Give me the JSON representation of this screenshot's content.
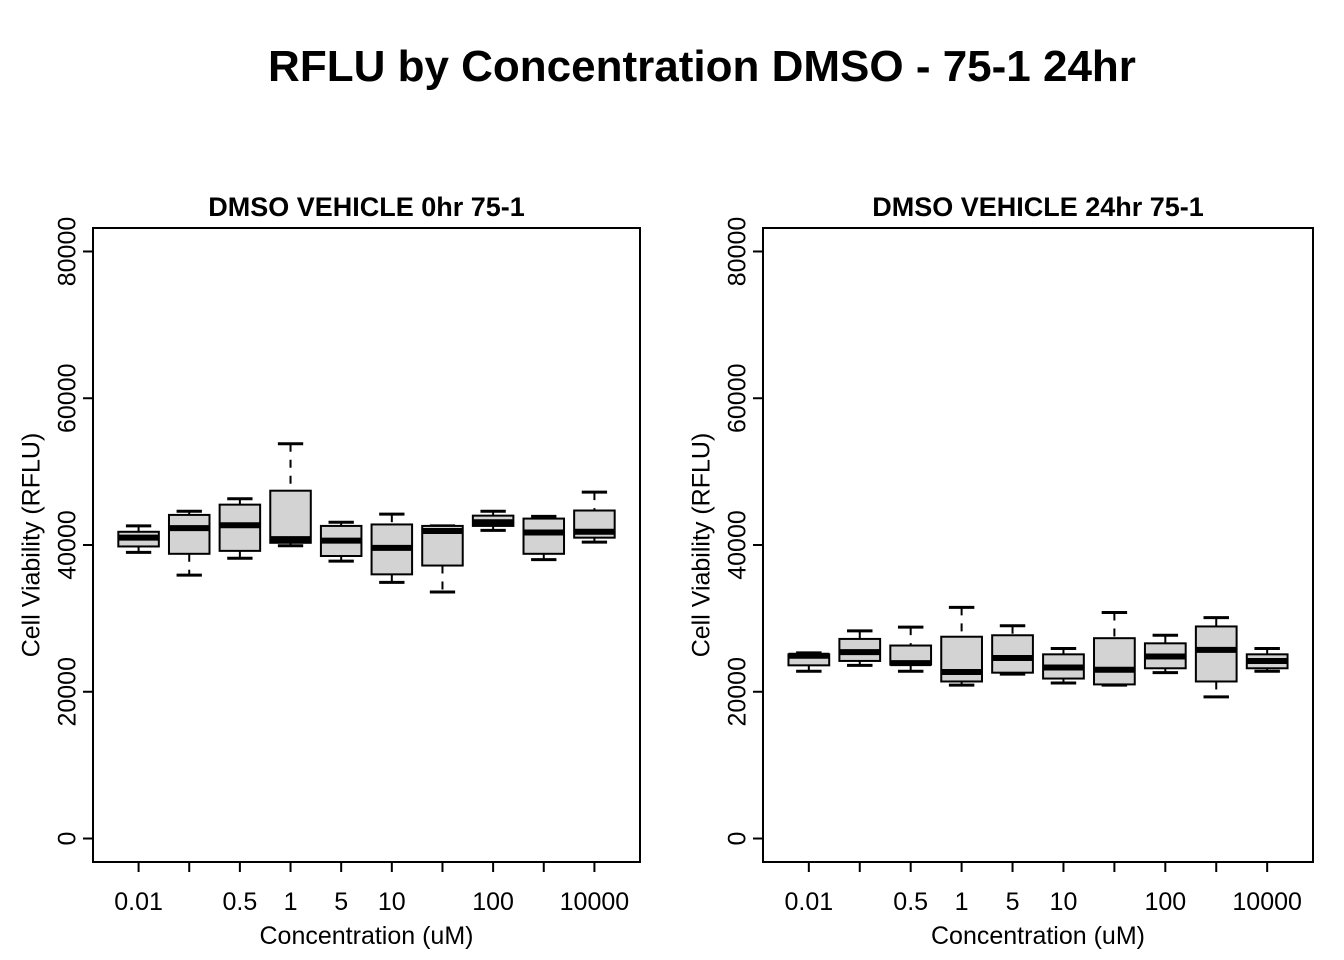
{
  "figure_title": "RFLU by Concentration DMSO - 75-1 24hr",
  "chart_data": [
    {
      "type": "boxplot",
      "title": "DMSO VEHICLE 0hr 75-1",
      "xlabel": "Concentration (uM)",
      "ylabel": "Cell Viability (RFLU)",
      "ylim": [
        0,
        80000
      ],
      "yticks": [
        "0",
        "20000",
        "40000",
        "60000",
        "80000"
      ],
      "ytick_values": [
        0,
        20000,
        40000,
        60000,
        80000
      ],
      "xtick_labels": [
        "0.01",
        "",
        "0.5",
        "1",
        "5",
        "10",
        "",
        "100",
        "",
        "10000"
      ],
      "grid": false,
      "legend": null,
      "box_fill": "#d3d3d3",
      "line_color": "#000000",
      "boxes": [
        {
          "low": 39000,
          "q1": 39800,
          "median": 41000,
          "q3": 41800,
          "high": 42600
        },
        {
          "low": 35900,
          "q1": 38800,
          "median": 42300,
          "q3": 44100,
          "high": 44600
        },
        {
          "low": 38200,
          "q1": 39200,
          "median": 42700,
          "q3": 45500,
          "high": 46300
        },
        {
          "low": 39900,
          "q1": 40300,
          "median": 40800,
          "q3": 47400,
          "high": 53800
        },
        {
          "low": 37800,
          "q1": 38500,
          "median": 40600,
          "q3": 42600,
          "high": 43100
        },
        {
          "low": 34900,
          "q1": 36000,
          "median": 39600,
          "q3": 42800,
          "high": 44200
        },
        {
          "low": 33600,
          "q1": 37200,
          "median": 41900,
          "q3": 42600,
          "high": 42600
        },
        {
          "low": 42000,
          "q1": 42600,
          "median": 43100,
          "q3": 44000,
          "high": 44600
        },
        {
          "low": 38000,
          "q1": 38800,
          "median": 41700,
          "q3": 43600,
          "high": 43900
        },
        {
          "low": 40400,
          "q1": 41000,
          "median": 41800,
          "q3": 44700,
          "high": 47200
        }
      ]
    },
    {
      "type": "boxplot",
      "title": "DMSO VEHICLE 24hr 75-1",
      "xlabel": "Concentration (uM)",
      "ylabel": "Cell Viability (RFLU)",
      "ylim": [
        0,
        80000
      ],
      "yticks": [
        "0",
        "20000",
        "40000",
        "60000",
        "80000"
      ],
      "ytick_values": [
        0,
        20000,
        40000,
        60000,
        80000
      ],
      "xtick_labels": [
        "0.01",
        "",
        "0.5",
        "1",
        "5",
        "10",
        "",
        "100",
        "",
        "10000"
      ],
      "grid": false,
      "legend": null,
      "box_fill": "#d3d3d3",
      "line_color": "#000000",
      "boxes": [
        {
          "low": 22800,
          "q1": 23600,
          "median": 24900,
          "q3": 25100,
          "high": 25300
        },
        {
          "low": 23600,
          "q1": 24200,
          "median": 25400,
          "q3": 27200,
          "high": 28300
        },
        {
          "low": 22800,
          "q1": 23700,
          "median": 23900,
          "q3": 26300,
          "high": 28800
        },
        {
          "low": 20900,
          "q1": 21400,
          "median": 22700,
          "q3": 27500,
          "high": 31500
        },
        {
          "low": 22400,
          "q1": 22600,
          "median": 24600,
          "q3": 27700,
          "high": 29000
        },
        {
          "low": 21200,
          "q1": 21800,
          "median": 23300,
          "q3": 25100,
          "high": 25900
        },
        {
          "low": 20900,
          "q1": 21000,
          "median": 23000,
          "q3": 27300,
          "high": 30800
        },
        {
          "low": 22600,
          "q1": 23200,
          "median": 24800,
          "q3": 26600,
          "high": 27700
        },
        {
          "low": 19300,
          "q1": 21400,
          "median": 25700,
          "q3": 28900,
          "high": 30100
        },
        {
          "low": 22800,
          "q1": 23200,
          "median": 24200,
          "q3": 25100,
          "high": 25900
        }
      ]
    }
  ]
}
